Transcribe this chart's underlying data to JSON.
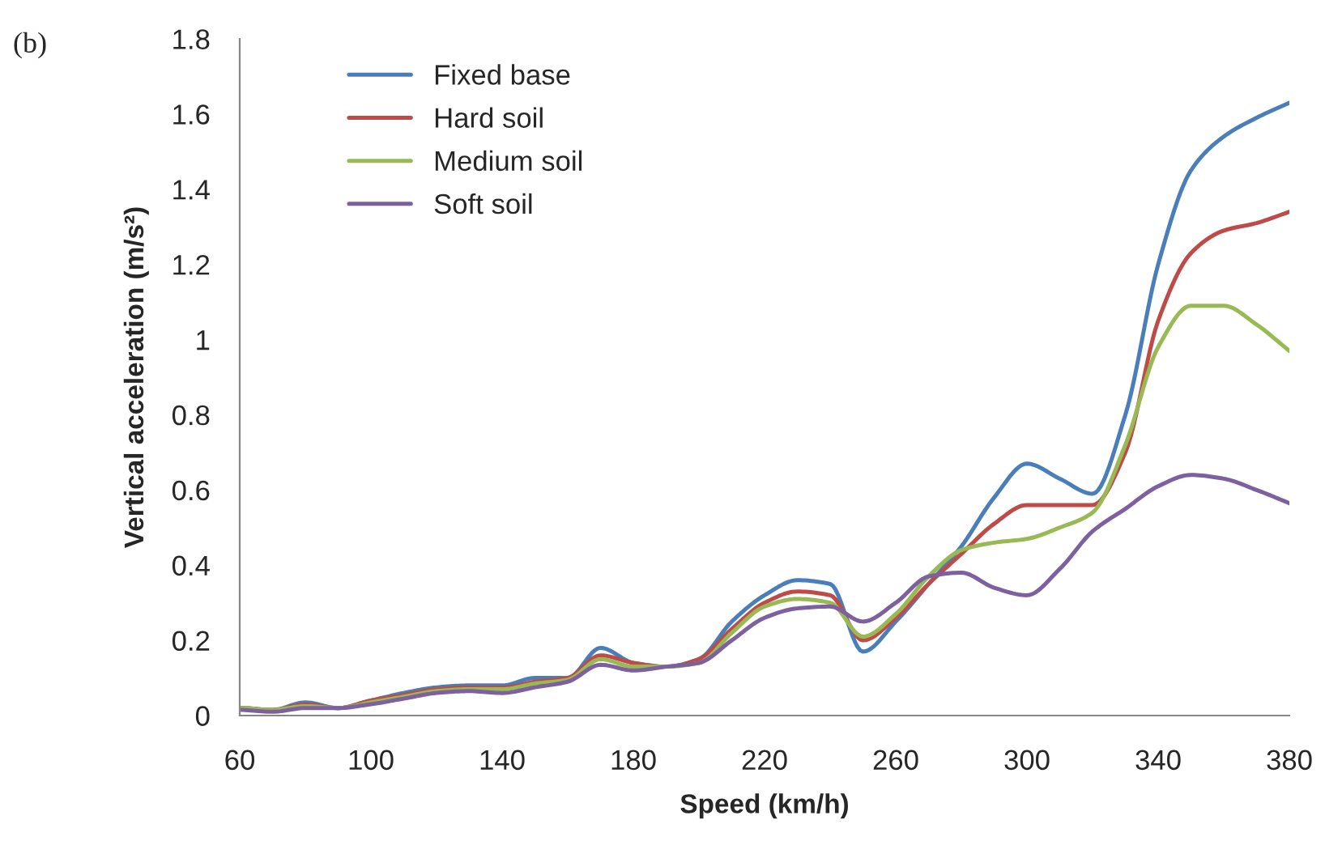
{
  "chart_data": {
    "type": "line",
    "xlabel": "Speed (km/h)",
    "ylabel": "Vertical acceleration (m/s²)",
    "annotations": [
      "(b)"
    ],
    "x": [
      60,
      70,
      80,
      90,
      100,
      110,
      120,
      130,
      140,
      150,
      160,
      170,
      180,
      190,
      200,
      210,
      220,
      230,
      240,
      250,
      260,
      270,
      280,
      290,
      300,
      310,
      320,
      330,
      340,
      350,
      360,
      370,
      380
    ],
    "series": [
      {
        "name": "Fixed base",
        "color": "#4a7ebb",
        "values": [
          0.02,
          0.015,
          0.035,
          0.02,
          0.04,
          0.06,
          0.075,
          0.08,
          0.08,
          0.1,
          0.1,
          0.18,
          0.14,
          0.13,
          0.15,
          0.25,
          0.32,
          0.36,
          0.35,
          0.17,
          0.25,
          0.35,
          0.45,
          0.58,
          0.67,
          0.63,
          0.59,
          0.8,
          1.2,
          1.45,
          1.54,
          1.59,
          1.63
        ]
      },
      {
        "name": "Hard soil",
        "color": "#be4b48",
        "values": [
          0.02,
          0.015,
          0.03,
          0.02,
          0.04,
          0.055,
          0.07,
          0.075,
          0.075,
          0.09,
          0.1,
          0.16,
          0.14,
          0.13,
          0.15,
          0.23,
          0.3,
          0.33,
          0.32,
          0.2,
          0.26,
          0.35,
          0.43,
          0.51,
          0.56,
          0.56,
          0.56,
          0.7,
          1.05,
          1.23,
          1.29,
          1.31,
          1.34
        ]
      },
      {
        "name": "Medium soil",
        "color": "#98b954",
        "values": [
          0.02,
          0.015,
          0.025,
          0.02,
          0.035,
          0.05,
          0.065,
          0.07,
          0.07,
          0.085,
          0.095,
          0.15,
          0.13,
          0.13,
          0.14,
          0.22,
          0.29,
          0.31,
          0.3,
          0.21,
          0.27,
          0.37,
          0.44,
          0.46,
          0.47,
          0.5,
          0.54,
          0.72,
          0.98,
          1.09,
          1.09,
          1.04,
          0.97
        ]
      },
      {
        "name": "Soft soil",
        "color": "#7d60a0",
        "values": [
          0.015,
          0.01,
          0.02,
          0.02,
          0.03,
          0.045,
          0.06,
          0.065,
          0.06,
          0.075,
          0.09,
          0.135,
          0.12,
          0.13,
          0.14,
          0.2,
          0.26,
          0.285,
          0.29,
          0.25,
          0.3,
          0.37,
          0.38,
          0.34,
          0.32,
          0.39,
          0.49,
          0.55,
          0.61,
          0.64,
          0.63,
          0.6,
          0.565
        ]
      }
    ],
    "xlim": [
      60,
      380
    ],
    "xticks": [
      60,
      100,
      140,
      180,
      220,
      260,
      300,
      340,
      380
    ],
    "ylim": [
      0,
      1.8
    ],
    "yticks": [
      0,
      0.2,
      0.4,
      0.6,
      0.8,
      1,
      1.2,
      1.4,
      1.6,
      1.8
    ],
    "grid": false,
    "legend": "top left",
    "marker": "none",
    "line_style": "solid"
  }
}
